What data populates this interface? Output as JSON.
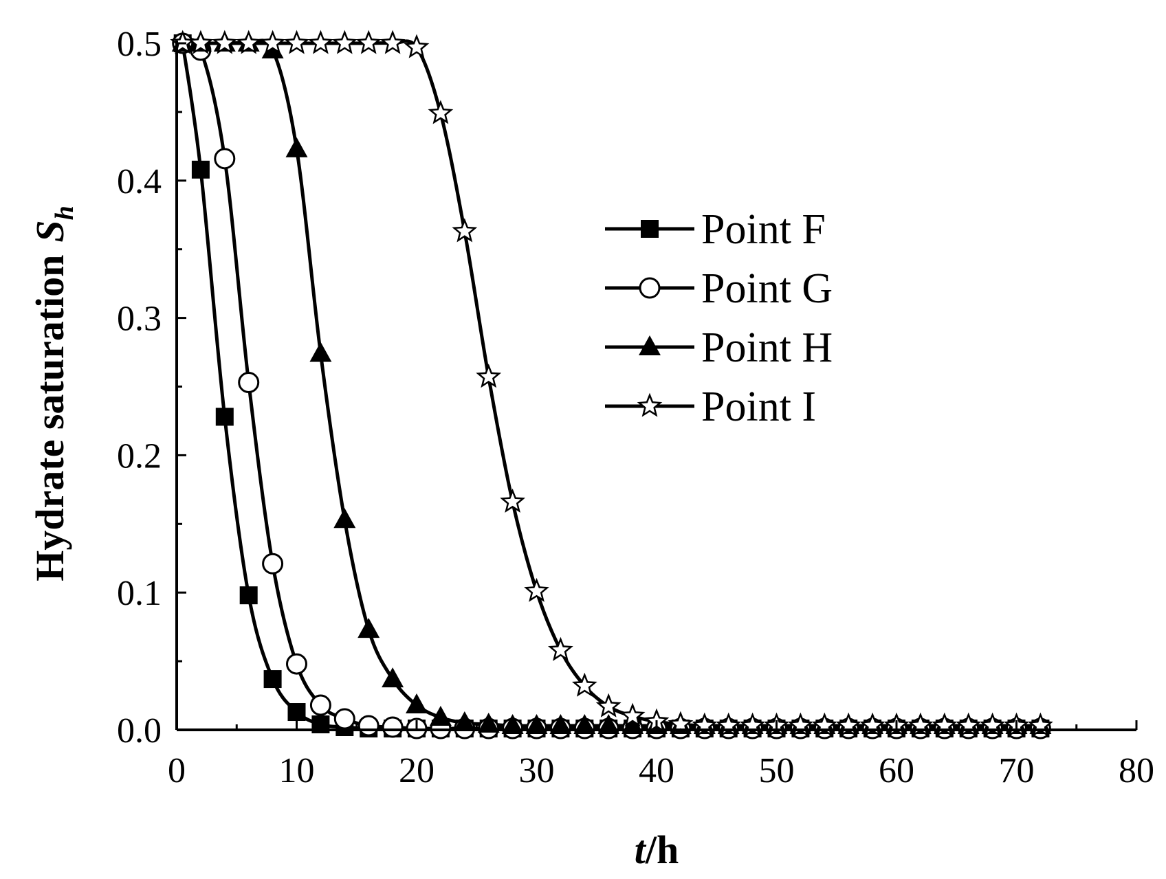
{
  "chart_data": {
    "type": "line",
    "xlabel": {
      "italic": "t",
      "rest": "/h"
    },
    "ylabel": {
      "text": "Hydrate saturation",
      "symbol": "S",
      "subscript": "h"
    },
    "xlim": [
      0,
      80
    ],
    "ylim": [
      0,
      0.5
    ],
    "xticks": [
      0,
      10,
      20,
      30,
      40,
      50,
      60,
      70,
      80
    ],
    "yticks": [
      0.0,
      0.1,
      0.2,
      0.3,
      0.4,
      0.5
    ],
    "xtick_labels": [
      "0",
      "10",
      "20",
      "30",
      "40",
      "50",
      "60",
      "70",
      "80"
    ],
    "ytick_labels": [
      "0.0",
      "0.1",
      "0.2",
      "0.3",
      "0.4",
      "0.5"
    ],
    "grid": false,
    "legend_position": "right-middle",
    "series": [
      {
        "name": "Point F",
        "marker": "square-filled",
        "x": [
          0.5,
          2,
          4,
          6,
          8,
          10,
          12,
          14,
          16,
          18,
          20,
          22,
          24,
          26,
          28,
          30,
          32,
          34,
          36,
          38,
          40,
          42,
          44,
          46,
          48,
          50,
          52,
          54,
          56,
          58,
          60,
          62,
          64,
          66,
          68,
          70,
          72
        ],
        "y": [
          0.5,
          0.408,
          0.228,
          0.098,
          0.037,
          0.013,
          0.004,
          0.002,
          0.001,
          0.001,
          0.001,
          0.001,
          0.001,
          0.001,
          0.001,
          0.001,
          0.001,
          0.001,
          0.001,
          0.001,
          0.001,
          0.001,
          0.001,
          0.001,
          0.001,
          0.001,
          0.001,
          0.001,
          0.001,
          0.001,
          0.001,
          0.001,
          0.001,
          0.001,
          0.001,
          0.001,
          0.001
        ]
      },
      {
        "name": "Point G",
        "marker": "circle-open",
        "x": [
          0.5,
          2,
          4,
          6,
          8,
          10,
          12,
          14,
          16,
          18,
          20,
          22,
          24,
          26,
          28,
          30,
          32,
          34,
          36,
          38,
          40,
          42,
          44,
          46,
          48,
          50,
          52,
          54,
          56,
          58,
          60,
          62,
          64,
          66,
          68,
          70,
          72
        ],
        "y": [
          0.5,
          0.495,
          0.416,
          0.253,
          0.121,
          0.048,
          0.018,
          0.008,
          0.003,
          0.002,
          0.001,
          0.001,
          0.001,
          0.001,
          0.001,
          0.001,
          0.001,
          0.001,
          0.001,
          0.001,
          0.001,
          0.001,
          0.001,
          0.001,
          0.001,
          0.001,
          0.001,
          0.001,
          0.001,
          0.001,
          0.001,
          0.001,
          0.001,
          0.001,
          0.001,
          0.001,
          0.001
        ]
      },
      {
        "name": "Point H",
        "marker": "triangle-filled",
        "x": [
          0.5,
          2,
          4,
          6,
          8,
          10,
          12,
          14,
          16,
          18,
          20,
          22,
          24,
          26,
          28,
          30,
          32,
          34,
          36,
          38,
          40,
          42,
          44,
          46,
          48,
          50,
          52,
          54,
          56,
          58,
          60,
          62,
          64,
          66,
          68,
          70,
          72
        ],
        "y": [
          0.5,
          0.5,
          0.5,
          0.5,
          0.495,
          0.423,
          0.274,
          0.153,
          0.073,
          0.037,
          0.018,
          0.009,
          0.005,
          0.004,
          0.003,
          0.003,
          0.003,
          0.003,
          0.003,
          0.003,
          0.003,
          0.003,
          0.003,
          0.003,
          0.003,
          0.003,
          0.003,
          0.003,
          0.003,
          0.003,
          0.003,
          0.003,
          0.003,
          0.003,
          0.003,
          0.003,
          0.003
        ]
      },
      {
        "name": "Point I",
        "marker": "star-open",
        "x": [
          0.5,
          2,
          4,
          6,
          8,
          10,
          12,
          14,
          16,
          18,
          20,
          22,
          24,
          26,
          28,
          30,
          32,
          34,
          36,
          38,
          40,
          42,
          44,
          46,
          48,
          50,
          52,
          54,
          56,
          58,
          60,
          62,
          64,
          66,
          68,
          70,
          72
        ],
        "y": [
          0.5,
          0.5,
          0.5,
          0.5,
          0.5,
          0.5,
          0.5,
          0.5,
          0.5,
          0.5,
          0.497,
          0.449,
          0.363,
          0.257,
          0.166,
          0.101,
          0.058,
          0.032,
          0.017,
          0.01,
          0.006,
          0.004,
          0.003,
          0.003,
          0.003,
          0.003,
          0.003,
          0.003,
          0.003,
          0.003,
          0.003,
          0.003,
          0.003,
          0.003,
          0.003,
          0.003,
          0.003
        ]
      }
    ]
  }
}
